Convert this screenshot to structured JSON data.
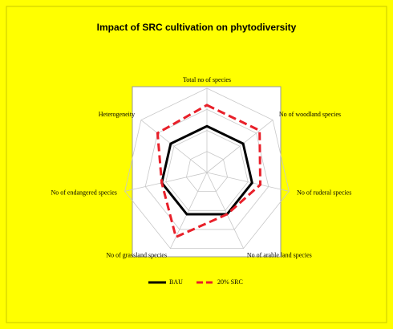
{
  "chart_data": {
    "type": "radar",
    "title": "Impact of SRC cultivation on phytodiversity",
    "categories": [
      "Total no of species",
      "No of woodland species",
      "No of ruderal species",
      "No of arable land species",
      "No of grassland species",
      "No of endangered species",
      "Heterogeneity"
    ],
    "series": [
      {
        "name": "BAU",
        "color": "#000000",
        "values": [
          1.1,
          1.1,
          1.1,
          1.1,
          1.1,
          1.1,
          1.1
        ]
      },
      {
        "name": "20% SRC",
        "color": "#e8202a",
        "values": [
          1.6,
          1.6,
          1.3,
          1.1,
          1.7,
          1.1,
          1.5
        ]
      }
    ],
    "ylim": [
      0,
      2
    ],
    "yticks": [
      0,
      0.5,
      1,
      1.5,
      2
    ],
    "grid": true,
    "legend": "bottom"
  }
}
